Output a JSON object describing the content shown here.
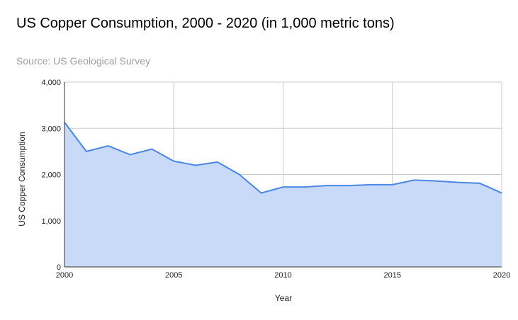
{
  "chart_data": {
    "type": "area",
    "title": "US Copper Consumption, 2000 - 2020 (in 1,000 metric tons)",
    "subtitle": "Source: US Geological Survey",
    "xlabel": "Year",
    "ylabel": "US Copper Consumption",
    "x": [
      2000,
      2001,
      2002,
      2003,
      2004,
      2005,
      2006,
      2007,
      2008,
      2009,
      2010,
      2011,
      2012,
      2013,
      2014,
      2015,
      2016,
      2017,
      2018,
      2019,
      2020
    ],
    "series": [
      {
        "values": [
          3130,
          2500,
          2620,
          2430,
          2550,
          2290,
          2200,
          2270,
          2000,
          1600,
          1730,
          1730,
          1760,
          1760,
          1780,
          1780,
          1880,
          1860,
          1830,
          1810,
          1600
        ]
      }
    ],
    "xlim": [
      2000,
      2020
    ],
    "ylim": [
      0,
      4000
    ],
    "x_ticks": [
      2000,
      2005,
      2010,
      2015,
      2020
    ],
    "y_ticks": [
      0,
      1000,
      2000,
      3000,
      4000
    ],
    "x_tick_labels": [
      "2000",
      "2005",
      "2010",
      "2015",
      "2020"
    ],
    "y_tick_labels": [
      "0",
      "1,000",
      "2,000",
      "3,000",
      "4,000"
    ],
    "grid": true,
    "legend": "none",
    "colors": {
      "line": "#4a86e8",
      "fill": "#c9daf8",
      "grid": "#cccccc",
      "axis": "#333333"
    }
  }
}
